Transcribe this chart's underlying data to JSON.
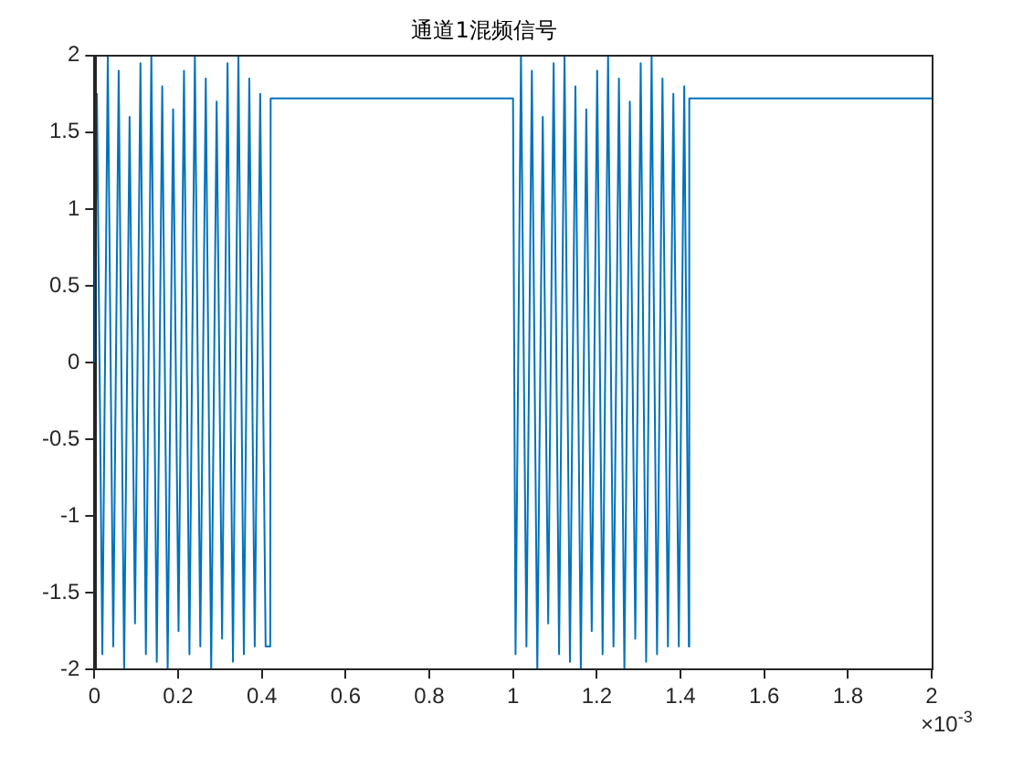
{
  "chart_data": {
    "type": "line",
    "title": "通道1混频信号",
    "x": [
      0,
      0.006,
      0.019,
      0.032,
      0.045,
      0.058,
      0.071,
      0.084,
      0.097,
      0.11,
      0.123,
      0.136,
      0.149,
      0.162,
      0.175,
      0.188,
      0.201,
      0.214,
      0.227,
      0.24,
      0.253,
      0.266,
      0.279,
      0.292,
      0.305,
      0.318,
      0.331,
      0.344,
      0.357,
      0.37,
      0.383,
      0.396,
      0.409,
      0.42,
      0.421,
      1.0,
      1.006,
      1.019,
      1.032,
      1.045,
      1.058,
      1.071,
      1.084,
      1.097,
      1.11,
      1.123,
      1.136,
      1.149,
      1.162,
      1.175,
      1.188,
      1.201,
      1.214,
      1.227,
      1.24,
      1.253,
      1.266,
      1.279,
      1.292,
      1.305,
      1.318,
      1.331,
      1.344,
      1.357,
      1.37,
      1.383,
      1.396,
      1.409,
      1.42,
      1.421,
      2
    ],
    "series": [
      {
        "color": "#0072bd",
        "values": [
          0,
          1.75,
          -1.9,
          2,
          -1.85,
          1.9,
          -2,
          1.6,
          -1.7,
          1.95,
          -1.9,
          2,
          -1.95,
          1.8,
          -2,
          1.65,
          -1.75,
          1.9,
          -1.9,
          2,
          -1.85,
          1.85,
          -2,
          1.7,
          -1.8,
          1.95,
          -1.95,
          2,
          -1.9,
          1.85,
          -1.85,
          1.75,
          -1.85,
          -1.85,
          1.72,
          1.72,
          -1.9,
          2,
          -1.85,
          1.9,
          -2,
          1.6,
          -1.7,
          1.95,
          -1.9,
          2,
          -1.95,
          1.8,
          -2,
          1.65,
          -1.75,
          1.9,
          -1.9,
          2,
          -1.85,
          1.85,
          -2,
          1.7,
          -1.8,
          1.95,
          -1.95,
          2,
          -1.9,
          1.85,
          -1.85,
          1.75,
          -1.85,
          1.8,
          -1.85,
          1.72,
          1.72
        ]
      }
    ],
    "xlim": [
      0,
      2
    ],
    "xticks": [
      0,
      0.2,
      0.4,
      0.6,
      0.8,
      1,
      1.2,
      1.4,
      1.6,
      1.8,
      2
    ],
    "ylim": [
      -2,
      2
    ],
    "yticks": [
      -2,
      -1.5,
      -1,
      -0.5,
      0,
      0.5,
      1,
      1.5,
      2
    ],
    "annotations": [
      "×10$^{-3}$"
    ],
    "grid": false,
    "legend": false,
    "marker": "none",
    "line_style": "solid"
  }
}
